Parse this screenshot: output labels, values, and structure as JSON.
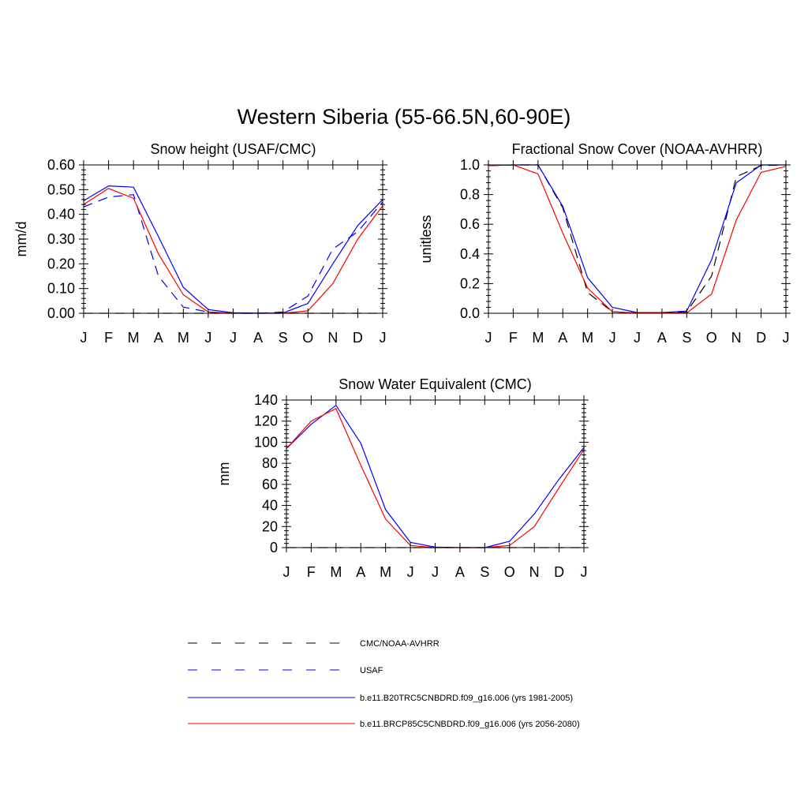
{
  "figure": {
    "title": "Western Siberia (55-66.5N,60-90E)"
  },
  "legend": {
    "placement": "bottom-center",
    "entries": [
      {
        "label": "CMC/NOAA-AVHRR",
        "color": "#000000",
        "dash": "dashed"
      },
      {
        "label": "USAF",
        "color": "#0000ff",
        "dash": "dashed"
      },
      {
        "label": "b.e11.B20TRC5CNBDRD.f09_g16.006 (yrs 1981-2005)",
        "color": "#0000ff",
        "dash": "solid"
      },
      {
        "label": "b.e11.BRCP85C5CNBDRD.f09_g16.006 (yrs 2056-2080)",
        "color": "#ff0000",
        "dash": "solid"
      }
    ]
  },
  "chart_data": [
    {
      "type": "line",
      "title": "Snow height (USAF/CMC)",
      "xlabel": "",
      "ylabel": "mm/d",
      "categories": [
        "J",
        "F",
        "M",
        "A",
        "M",
        "J",
        "J",
        "A",
        "S",
        "O",
        "N",
        "D",
        "J"
      ],
      "ylim": [
        0,
        0.6
      ],
      "yticks": [
        0,
        0.1,
        0.2,
        0.3,
        0.4,
        0.5,
        0.6
      ],
      "ytick_labels": [
        "0.00",
        "0.10",
        "0.20",
        "0.30",
        "0.40",
        "0.50",
        "0.60"
      ],
      "grid": false,
      "series": [
        {
          "legend_index": 0,
          "values": [
            0,
            0,
            0,
            0,
            0,
            0,
            0,
            0,
            0,
            0,
            0,
            0,
            0
          ]
        },
        {
          "legend_index": 1,
          "values": [
            0.43,
            0.47,
            0.48,
            0.15,
            0.025,
            0.005,
            0,
            0,
            0.005,
            0.07,
            0.26,
            0.33,
            0.45
          ]
        },
        {
          "legend_index": 2,
          "values": [
            0.455,
            0.515,
            0.51,
            0.31,
            0.105,
            0.015,
            0.002,
            0.001,
            0.001,
            0.04,
            0.2,
            0.355,
            0.46
          ]
        },
        {
          "legend_index": 3,
          "values": [
            0.44,
            0.505,
            0.465,
            0.24,
            0.075,
            0.005,
            0,
            0,
            0,
            0.01,
            0.12,
            0.3,
            0.435
          ]
        }
      ]
    },
    {
      "type": "line",
      "title": "Fractional Snow Cover (NOAA-AVHRR)",
      "xlabel": "",
      "ylabel": "unitless",
      "categories": [
        "J",
        "F",
        "M",
        "A",
        "M",
        "J",
        "J",
        "A",
        "S",
        "O",
        "N",
        "D",
        "J"
      ],
      "ylim": [
        0,
        1
      ],
      "yticks": [
        0,
        0.2,
        0.4,
        0.6,
        0.8,
        1.0
      ],
      "ytick_labels": [
        "0.0",
        "0.2",
        "0.4",
        "0.6",
        "0.8",
        "1.0"
      ],
      "grid": false,
      "series": [
        {
          "legend_index": 0,
          "values": [
            0.995,
            1.0,
            1.0,
            0.71,
            0.14,
            0.01,
            0.002,
            0.002,
            0.01,
            0.25,
            0.92,
            0.995,
            1.0
          ]
        },
        {
          "legend_index": 2,
          "values": [
            0.995,
            1.0,
            1.0,
            0.72,
            0.24,
            0.04,
            0.005,
            0.005,
            0.015,
            0.36,
            0.88,
            1.0,
            1.0
          ]
        },
        {
          "legend_index": 3,
          "values": [
            0.995,
            1.0,
            0.94,
            0.54,
            0.17,
            0.01,
            0.002,
            0.002,
            0.002,
            0.13,
            0.63,
            0.95,
            0.99
          ]
        }
      ]
    },
    {
      "type": "line",
      "title": "Snow Water Equivalent (CMC)",
      "xlabel": "",
      "ylabel": "mm",
      "categories": [
        "J",
        "F",
        "M",
        "A",
        "M",
        "J",
        "J",
        "A",
        "S",
        "O",
        "N",
        "D",
        "J"
      ],
      "ylim": [
        0,
        140
      ],
      "yticks": [
        0,
        20,
        40,
        60,
        80,
        100,
        120,
        140
      ],
      "ytick_labels": [
        "0",
        "20",
        "40",
        "60",
        "80",
        "100",
        "120",
        "140"
      ],
      "grid": false,
      "series": [
        {
          "legend_index": 0,
          "values": [
            0,
            0,
            0,
            0,
            0,
            0,
            0,
            0,
            0,
            0,
            0,
            0,
            0
          ]
        },
        {
          "legend_index": 2,
          "values": [
            94,
            117,
            135,
            99,
            36,
            5,
            0.5,
            0,
            0,
            6,
            32,
            65,
            95
          ]
        },
        {
          "legend_index": 3,
          "values": [
            94,
            120,
            132,
            78,
            27,
            2,
            0,
            0,
            0,
            2,
            20,
            57,
            93
          ]
        }
      ]
    }
  ]
}
